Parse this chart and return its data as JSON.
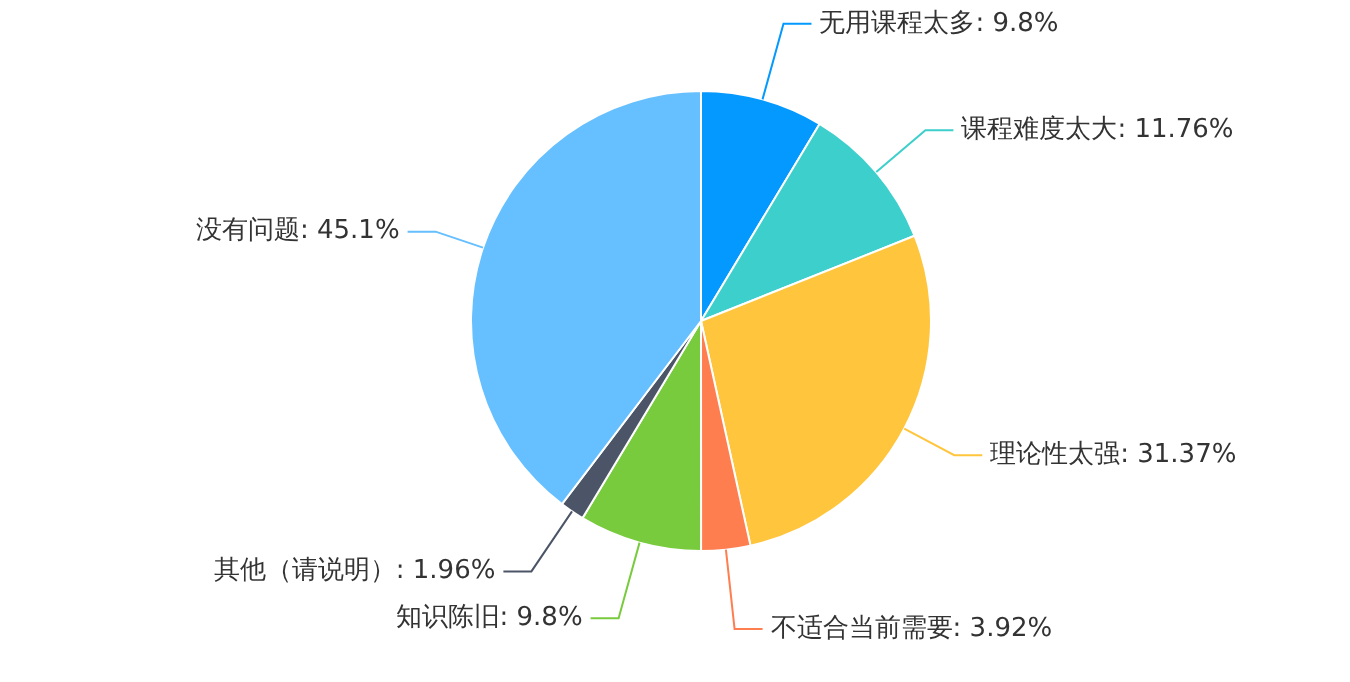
{
  "chart_data": {
    "type": "pie",
    "categories": [
      "无用课程太多",
      "课程难度太大",
      "理论性太强",
      "不适合当前需要",
      "知识陈旧",
      "其他（请说明）",
      "没有问题"
    ],
    "values": [
      9.8,
      11.76,
      31.37,
      3.92,
      9.8,
      1.96,
      45.1
    ],
    "value_labels": [
      "9.8%",
      "11.76%",
      "31.37%",
      "3.92%",
      "9.8%",
      "1.96%",
      "45.1%"
    ],
    "colors": [
      "#0399fe",
      "#3ccfcc",
      "#ffc53d",
      "#ff7e50",
      "#79cb3e",
      "#4b5567",
      "#66bffe"
    ],
    "legend": false
  }
}
